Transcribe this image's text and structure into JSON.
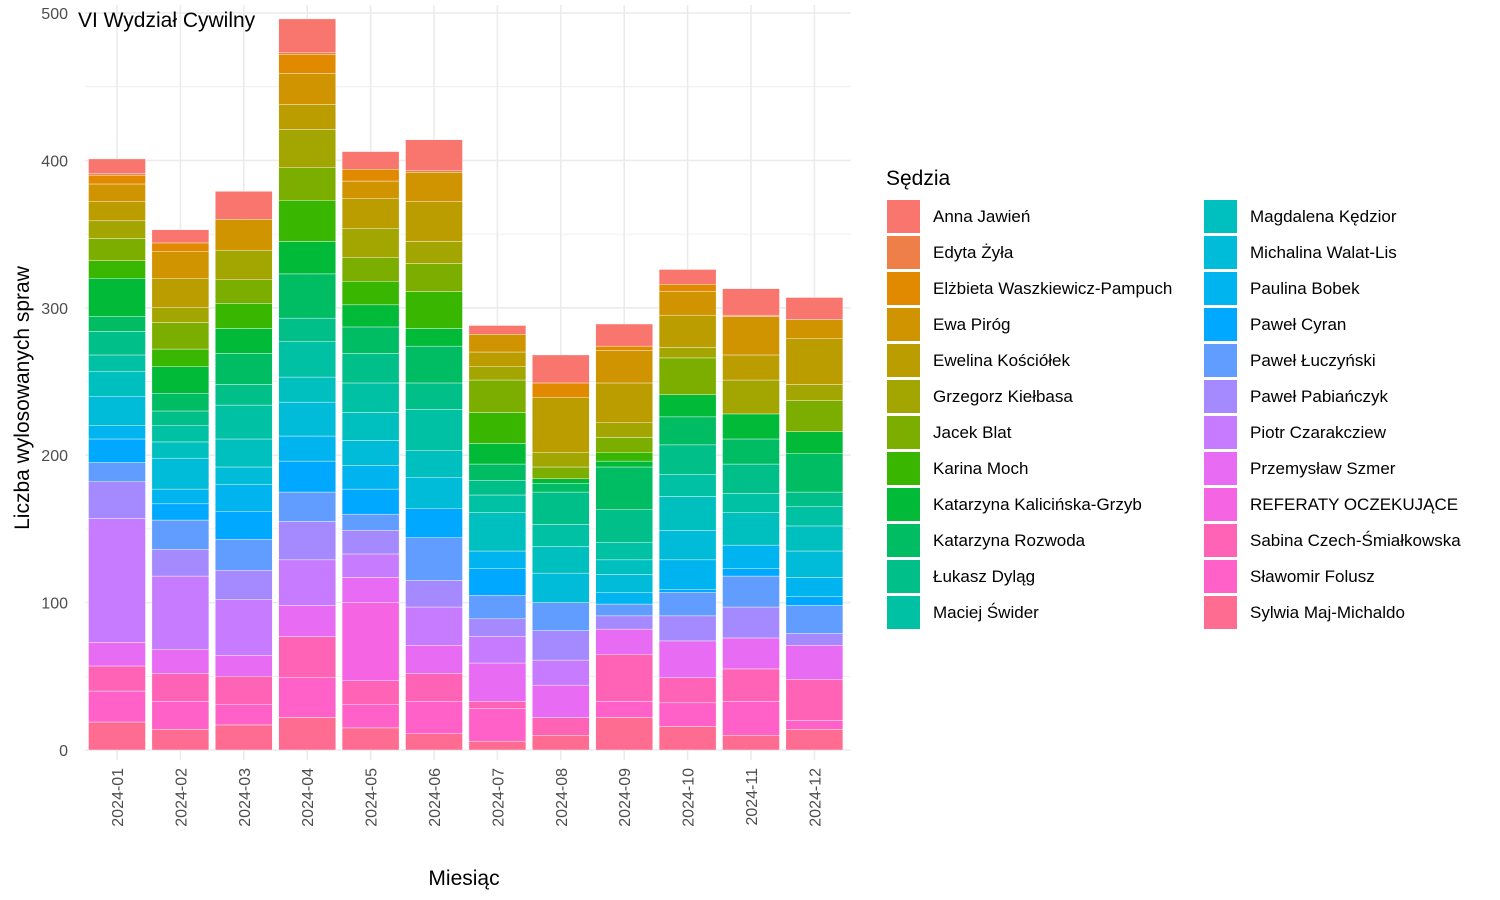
{
  "chart_data": {
    "type": "bar",
    "stacked": true,
    "title": "VI Wydział Cywilny",
    "xlabel": "Miesiąc",
    "ylabel": "Liczba wylosowanych spraw",
    "ylim": [
      0,
      500
    ],
    "yticks": [
      0,
      100,
      200,
      300,
      400,
      500
    ],
    "grid": true,
    "legend_title": "Sędzia",
    "legend_position": "right",
    "categories": [
      "2024-01",
      "2024-02",
      "2024-03",
      "2024-04",
      "2024-05",
      "2024-06",
      "2024-07",
      "2024-08",
      "2024-09",
      "2024-10",
      "2024-11",
      "2024-12"
    ],
    "series": [
      {
        "name": "Sylwia Maj-Michaldo",
        "color": "#FF6C91",
        "values": [
          19,
          14,
          17,
          22,
          15,
          11,
          6,
          10,
          22,
          16,
          10,
          14
        ]
      },
      {
        "name": "Sławomir Folusz",
        "color": "#FF61C9",
        "values": [
          21,
          19,
          14,
          27,
          16,
          22,
          22,
          0,
          11,
          16,
          23,
          6
        ]
      },
      {
        "name": "Sabina Czech-Śmiałkowska",
        "color": "#FF63B6",
        "values": [
          17,
          19,
          19,
          28,
          16,
          19,
          5,
          12,
          32,
          17,
          22,
          28
        ]
      },
      {
        "name": "REFERATY OCZEKUJĄCE",
        "color": "#F564E3",
        "values": [
          0,
          0,
          0,
          0,
          53,
          0,
          0,
          0,
          0,
          0,
          0,
          0
        ]
      },
      {
        "name": "Przemysław Szmer",
        "color": "#E76BF3",
        "values": [
          16,
          16,
          14,
          21,
          17,
          19,
          26,
          22,
          17,
          25,
          21,
          23
        ]
      },
      {
        "name": "Piotr Czarakcziew",
        "color": "#C77CFF",
        "values": [
          84,
          50,
          38,
          31,
          16,
          26,
          18,
          17,
          0,
          0,
          0,
          0
        ]
      },
      {
        "name": "Paweł Pabiańczyk",
        "color": "#A58AFF",
        "values": [
          25,
          18,
          20,
          26,
          16,
          18,
          12,
          20,
          9,
          17,
          21,
          8
        ]
      },
      {
        "name": "Paweł Łuczyński",
        "color": "#619CFF",
        "values": [
          13,
          20,
          21,
          20,
          11,
          29,
          16,
          19,
          8,
          16,
          21,
          19
        ]
      },
      {
        "name": "Paweł Cyran",
        "color": "#00A9FF",
        "values": [
          16,
          11,
          19,
          21,
          17,
          20,
          18,
          0,
          0,
          2,
          5,
          6
        ]
      },
      {
        "name": "Paulina Bobek",
        "color": "#00B4EF",
        "values": [
          9,
          10,
          18,
          17,
          16,
          0,
          12,
          0,
          8,
          20,
          16,
          13
        ]
      },
      {
        "name": "Michalina Walat-Lis",
        "color": "#00BCD8",
        "values": [
          20,
          21,
          12,
          23,
          17,
          21,
          0,
          20,
          12,
          20,
          0,
          18
        ]
      },
      {
        "name": "Magdalena Kędzior",
        "color": "#00C0BF",
        "values": [
          17,
          11,
          19,
          17,
          19,
          18,
          26,
          18,
          10,
          23,
          22,
          17
        ]
      },
      {
        "name": "Maciej Świder",
        "color": "#00C1A4",
        "values": [
          11,
          11,
          23,
          24,
          20,
          28,
          12,
          15,
          12,
          15,
          13,
          13
        ]
      },
      {
        "name": "Łukasz Dyląg",
        "color": "#00BF89",
        "values": [
          16,
          10,
          14,
          16,
          20,
          18,
          10,
          22,
          22,
          20,
          20,
          10
        ]
      },
      {
        "name": "Katarzyna Rozwoda",
        "color": "#00BC63",
        "values": [
          10,
          12,
          21,
          30,
          18,
          25,
          11,
          6,
          29,
          19,
          17,
          26
        ]
      },
      {
        "name": "Katarzyna Kalicińska-Grzyb",
        "color": "#00BA38",
        "values": [
          26,
          18,
          17,
          22,
          15,
          12,
          14,
          3,
          4,
          15,
          17,
          15
        ]
      },
      {
        "name": "Karina Moch",
        "color": "#39B600",
        "values": [
          12,
          12,
          17,
          28,
          16,
          25,
          21,
          0,
          6,
          0,
          0,
          0
        ]
      },
      {
        "name": "Jacek Blat",
        "color": "#7CAE00",
        "values": [
          15,
          18,
          16,
          22,
          16,
          19,
          22,
          8,
          10,
          25,
          0,
          21
        ]
      },
      {
        "name": "Grzegorz Kiełbasa",
        "color": "#A3A500",
        "values": [
          12,
          10,
          20,
          26,
          20,
          15,
          9,
          10,
          10,
          7,
          23,
          11
        ]
      },
      {
        "name": "Ewelina Kościółek",
        "color": "#BB9D00",
        "values": [
          13,
          20,
          0,
          17,
          20,
          27,
          10,
          37,
          27,
          22,
          17,
          31
        ]
      },
      {
        "name": "Ewa Piróg",
        "color": "#CF9400",
        "values": [
          12,
          18,
          21,
          21,
          12,
          20,
          12,
          0,
          22,
          16,
          26,
          13
        ]
      },
      {
        "name": "Elżbieta Waszkiewicz-Pampuch",
        "color": "#E18A00",
        "values": [
          6,
          6,
          0,
          13,
          8,
          0,
          0,
          10,
          3,
          5,
          0,
          0
        ]
      },
      {
        "name": "Edyta Żyła",
        "color": "#EF7F49",
        "values": [
          1,
          0,
          0,
          1,
          0,
          1,
          0,
          0,
          0,
          0,
          1,
          0
        ]
      },
      {
        "name": "Anna Jawień",
        "color": "#F8766D",
        "values": [
          10,
          9,
          19,
          23,
          12,
          21,
          6,
          19,
          15,
          10,
          18,
          15
        ]
      }
    ]
  },
  "legend_columns": [
    [
      "Anna Jawień",
      "Edyta Żyła",
      "Elżbieta Waszkiewicz-Pampuch",
      "Ewa Piróg",
      "Ewelina Kościółek",
      "Grzegorz Kiełbasa",
      "Jacek Blat",
      "Karina Moch",
      "Katarzyna Kalicińska-Grzyb",
      "Katarzyna Rozwoda",
      "Łukasz Dyląg",
      "Maciej Świder"
    ],
    [
      "Magdalena Kędzior",
      "Michalina Walat-Lis",
      "Paulina Bobek",
      "Paweł Cyran",
      "Paweł Łuczyński",
      "Paweł Pabiańczyk",
      "Piotr Czarakcziew",
      "Przemysław Szmer",
      "REFERATY OCZEKUJĄCE",
      "Sabina Czech-Śmiałkowska",
      "Sławomir Folusz",
      "Sylwia Maj-Michaldo"
    ]
  ]
}
